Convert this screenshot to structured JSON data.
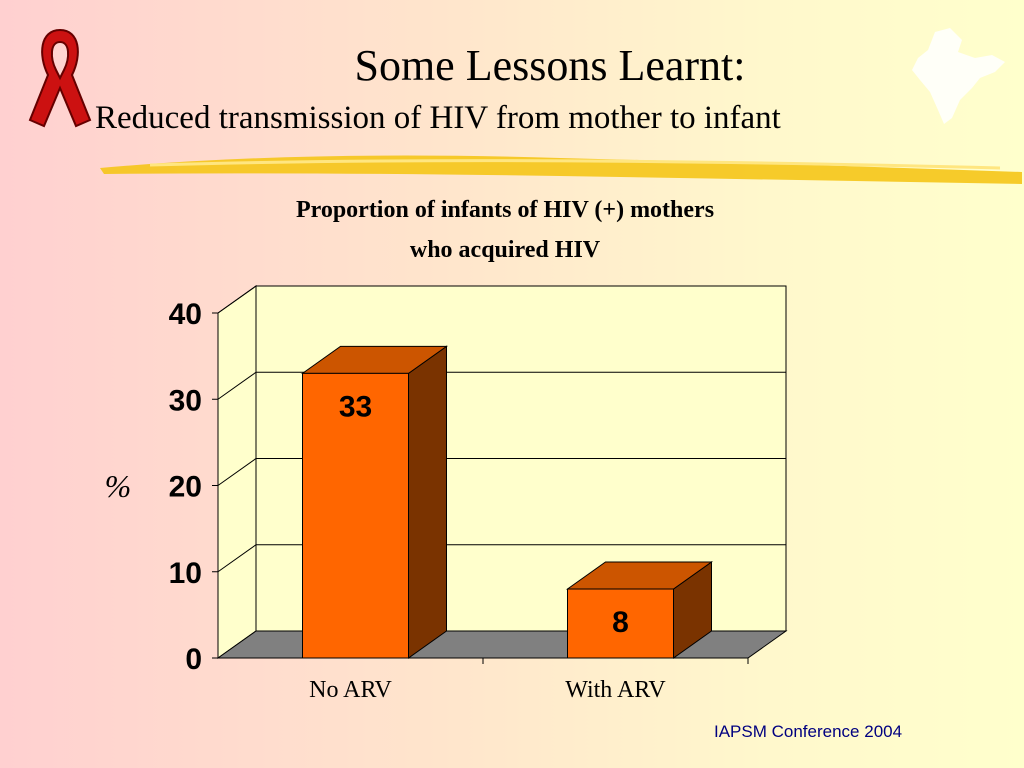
{
  "slide": {
    "title": "Some Lessons Learnt:",
    "subtitle": "Reduced transmission of HIV from mother to infant",
    "footer": "IAPSM  Conference 2004"
  },
  "decor": {
    "ribbon_icon": "red-ribbon-icon",
    "map_icon": "india-map-icon",
    "ribbon_color": "#cc1111",
    "highlighter_color": "#f5c518"
  },
  "chart_data": {
    "type": "bar",
    "title_line1": "Proportion of infants of HIV (+) mothers",
    "title_line2": "who acquired HIV",
    "categories": [
      "No ARV",
      "With ARV"
    ],
    "values": [
      33,
      8
    ],
    "data_labels": [
      "33",
      "8"
    ],
    "ylabel": "%",
    "ylim": [
      0,
      40
    ],
    "yticks": [
      "0",
      "10",
      "20",
      "30",
      "40"
    ],
    "grid": true,
    "three_d": true,
    "bar_color": "#ff6600",
    "bar_side_color": "#7a3300",
    "bar_top_color": "#cc5500",
    "floor_color": "#808080",
    "wall_color": "#ffffcc"
  }
}
